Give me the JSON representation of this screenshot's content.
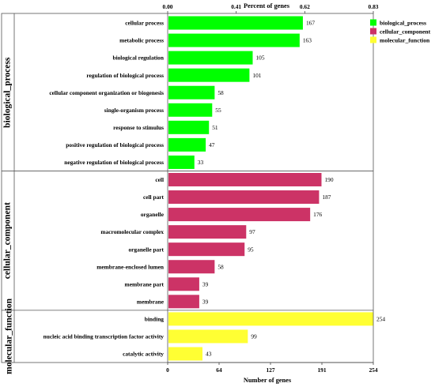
{
  "chart_data": {
    "type": "bar",
    "orientation": "horizontal",
    "title": "",
    "xlabel": "Number of genes",
    "x2label": "Percent of genes",
    "xlim": [
      0,
      254
    ],
    "x_ticks": [
      "0",
      "64",
      "127",
      "191",
      "254"
    ],
    "x2_ticks": [
      "0.00",
      "0.41",
      "0.62",
      "0.83"
    ],
    "legend_position": "top-right",
    "grid": false,
    "groups": [
      {
        "name": "biological_process",
        "legend": "biological_process",
        "color": "#00ff00",
        "categories": [
          "cellular process",
          "metabolic process",
          "biological regulation",
          "regulation of biological process",
          "cellular component organization or biogenesis",
          "single-organism process",
          "response to stimulus",
          "positive regulation of biological process",
          "negative regulation of biological process"
        ],
        "values": [
          167,
          163,
          105,
          101,
          58,
          55,
          51,
          47,
          33
        ]
      },
      {
        "name": "cellular_component",
        "legend": "cellular_component",
        "color": "#cc3366",
        "categories": [
          "cell",
          "cell part",
          "organelle",
          "macromolecular complex",
          "organelle part",
          "membrane-enclosed lumen",
          "membrane part",
          "membrane"
        ],
        "values": [
          190,
          187,
          176,
          97,
          95,
          58,
          39,
          39
        ]
      },
      {
        "name": "molecular_function",
        "legend": "molecular_function",
        "color": "#ffff33",
        "categories": [
          "binding",
          "nucleic acid binding transcription factor activity",
          "catalytic activity"
        ],
        "values": [
          254,
          99,
          43
        ]
      }
    ]
  }
}
